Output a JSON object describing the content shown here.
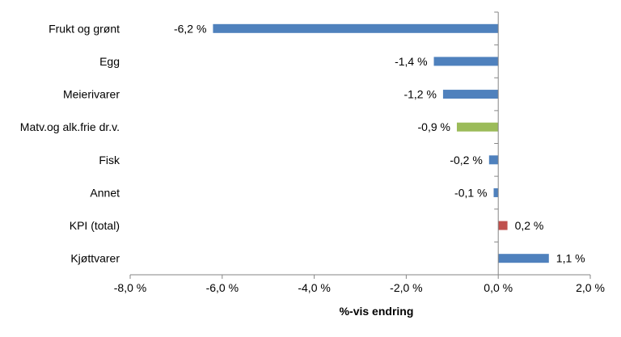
{
  "chart_data": {
    "type": "bar",
    "orientation": "horizontal",
    "categories": [
      "Frukt og grønt",
      "Egg",
      "Meierivarer",
      "Matv.og alk.frie dr.v.",
      "Fisk",
      "Annet",
      "KPI (total)",
      "Kjøttvarer"
    ],
    "values": [
      -6.2,
      -1.4,
      -1.2,
      -0.9,
      -0.2,
      -0.1,
      0.2,
      1.1
    ],
    "data_labels": [
      "-6,2 %",
      "-1,4 %",
      "-1,2 %",
      "-0,9 %",
      "-0,2 %",
      "-0,1 %",
      "0,2 %",
      "1,1 %"
    ],
    "bar_colors": [
      "#4f81bd",
      "#4f81bd",
      "#4f81bd",
      "#9bbb59",
      "#4f81bd",
      "#4f81bd",
      "#c0504d",
      "#4f81bd"
    ],
    "xlabel": "%-vis endring",
    "xlim": [
      -8,
      2
    ],
    "x_ticks": [
      -8,
      -6,
      -4,
      -2,
      0,
      2
    ],
    "x_tick_labels": [
      "-8,0 %",
      "-6,0 %",
      "-4,0 %",
      "-2,0 %",
      "0,0 %",
      "2,0 %"
    ],
    "grid": false,
    "legend": "none"
  }
}
